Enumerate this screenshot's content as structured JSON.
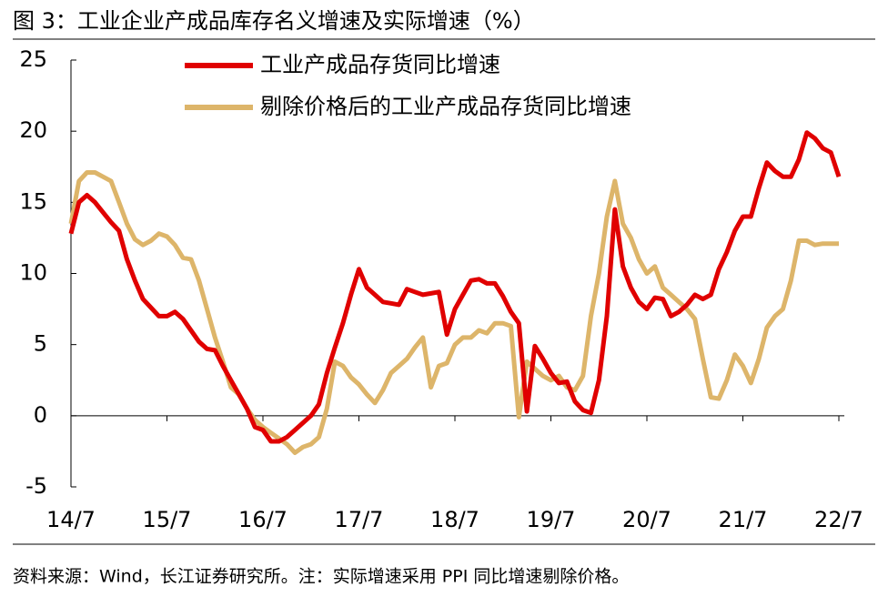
{
  "chart_data": {
    "type": "line",
    "title": "图 3：工业企业产成品库存名义增速及实际增速（%）",
    "note": "资料来源：Wind，长江证券研究所。注：实际增速采用 PPI 同比增速剔除价格。",
    "categories": [
      "14/7",
      null,
      null,
      null,
      null,
      null,
      null,
      null,
      null,
      null,
      null,
      null,
      "15/7",
      null,
      null,
      null,
      null,
      null,
      null,
      null,
      null,
      null,
      null,
      null,
      "16/7",
      null,
      null,
      null,
      null,
      null,
      null,
      null,
      null,
      null,
      null,
      null,
      "17/7",
      null,
      null,
      null,
      null,
      null,
      null,
      null,
      null,
      null,
      null,
      null,
      "18/7",
      null,
      null,
      null,
      null,
      null,
      null,
      null,
      null,
      null,
      null,
      null,
      "19/7",
      null,
      null,
      null,
      null,
      null,
      null,
      null,
      null,
      null,
      null,
      null,
      "20/7",
      null,
      null,
      null,
      null,
      null,
      null,
      null,
      null,
      null,
      null,
      null,
      "21/7",
      null,
      null,
      null,
      null,
      null,
      null,
      null,
      null,
      null,
      null,
      null,
      "22/7"
    ],
    "series": [
      {
        "name": "工业产成品存货同比增速",
        "color": "#e00000",
        "values": [
          12.8,
          15.0,
          15.5,
          15.0,
          14.3,
          13.6,
          13.0,
          11.0,
          9.5,
          8.2,
          7.6,
          7.0,
          7.0,
          7.3,
          6.8,
          6.0,
          5.2,
          4.7,
          4.6,
          3.5,
          2.5,
          1.5,
          0.5,
          -0.8,
          -1.0,
          -1.8,
          -1.8,
          -1.5,
          -1.0,
          -0.5,
          0.0,
          0.8,
          3.0,
          4.8,
          6.5,
          8.5,
          10.3,
          9.0,
          8.5,
          8.0,
          7.9,
          7.8,
          8.9,
          8.7,
          8.5,
          8.6,
          8.7,
          5.7,
          7.5,
          8.5,
          9.5,
          9.6,
          9.3,
          9.3,
          8.4,
          7.3,
          6.5,
          0.3,
          4.9,
          4.0,
          3.0,
          2.3,
          2.4,
          1.0,
          0.4,
          0.2,
          2.5,
          7.0,
          14.5,
          10.5,
          9.0,
          8.0,
          7.5,
          8.3,
          8.2,
          7.0,
          7.3,
          7.8,
          8.5,
          8.2,
          8.5,
          10.3,
          11.5,
          13.0,
          14.0,
          14.0,
          16.0,
          17.8,
          17.2,
          16.8,
          16.8,
          18.0,
          19.9,
          19.5,
          18.8,
          18.5,
          16.8
        ]
      },
      {
        "name": "剔除价格后的工业产成品存货同比增速",
        "color": "#ddb56a",
        "values": [
          13.5,
          16.5,
          17.1,
          17.1,
          16.8,
          16.5,
          15.0,
          13.5,
          12.4,
          12.0,
          12.3,
          12.8,
          12.6,
          12.0,
          11.1,
          11.0,
          9.5,
          7.5,
          5.5,
          3.8,
          2.0,
          1.5,
          0.5,
          -0.3,
          -0.8,
          -1.2,
          -1.6,
          -2.0,
          -2.6,
          -2.2,
          -2.0,
          -1.5,
          0.5,
          3.8,
          3.5,
          2.7,
          2.2,
          1.5,
          0.9,
          1.8,
          3.0,
          3.5,
          4.0,
          4.8,
          5.5,
          2.0,
          3.5,
          3.7,
          5.0,
          5.5,
          5.5,
          6.0,
          5.8,
          6.5,
          6.5,
          6.3,
          -0.1,
          3.8,
          3.3,
          2.8,
          2.5,
          2.8,
          2.0,
          1.8,
          2.8,
          7.0,
          10.0,
          14.0,
          16.5,
          13.5,
          12.5,
          11.0,
          10.0,
          10.5,
          9.0,
          8.5,
          8.0,
          7.5,
          6.8,
          4.0,
          1.3,
          1.2,
          2.5,
          4.3,
          3.5,
          2.3,
          4.0,
          6.2,
          7.0,
          7.5,
          9.5,
          12.3,
          12.3,
          12.0,
          12.1,
          12.1,
          12.1
        ]
      }
    ],
    "ylim": [
      -5,
      25
    ],
    "yticks": [
      -5,
      0,
      5,
      10,
      15,
      20,
      25
    ],
    "legend": "top"
  }
}
